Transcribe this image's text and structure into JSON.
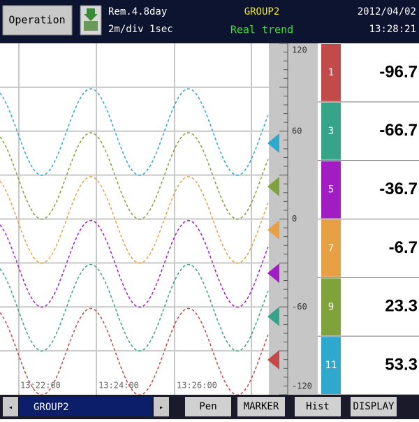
{
  "header": {
    "button": "Operation",
    "remaining": "Rem.4.8day",
    "division": "2m/div 1sec",
    "group": "GROUP2",
    "mode": "Real trend",
    "date": "2012/04/02",
    "time": "13:28:21"
  },
  "scale": {
    "labels": [
      "120",
      "60",
      "0",
      "-60",
      "-120"
    ]
  },
  "time_labels": [
    "13:22:00",
    "13:24:00",
    "13:26:00"
  ],
  "channels": [
    {
      "number": "1",
      "value": "-96.7",
      "color": "#c24a48"
    },
    {
      "number": "3",
      "value": "-66.7",
      "color": "#36a488"
    },
    {
      "number": "5",
      "value": "-36.7",
      "color": "#a21cc4"
    },
    {
      "number": "7",
      "value": "-6.7",
      "color": "#e8a044"
    },
    {
      "number": "9",
      "value": "23.3",
      "color": "#7fa23a"
    },
    {
      "number": "11",
      "value": "53.3",
      "color": "#2ea8cc"
    }
  ],
  "footer": {
    "group": "GROUP2",
    "buttons": [
      "Pen",
      "MARKER",
      "Hist",
      "DISPLAY"
    ]
  }
}
